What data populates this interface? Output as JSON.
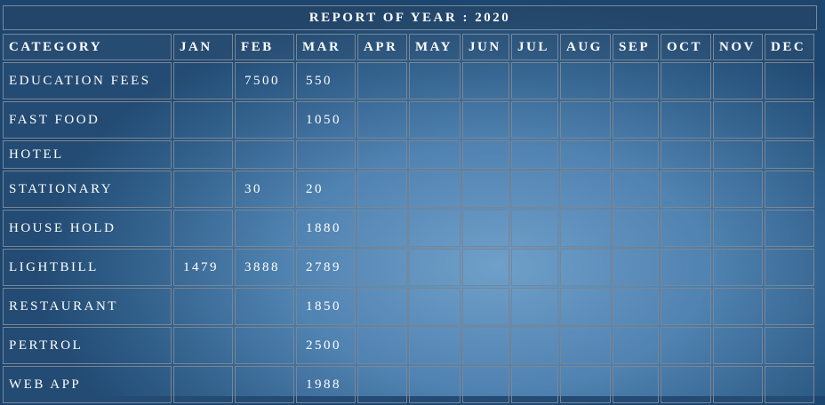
{
  "report": {
    "title": "REPORT OF YEAR : 2020",
    "columns": [
      "CATEGORY",
      "JAN",
      "FEB",
      "MAR",
      "APR",
      "MAY",
      "JUN",
      "JUL",
      "AUG",
      "SEP",
      "OCT",
      "NOV",
      "DEC"
    ],
    "rows": [
      {
        "category": "EDUCATION FEES",
        "values": [
          "",
          "7500",
          "550",
          "",
          "",
          "",
          "",
          "",
          "",
          "",
          "",
          ""
        ]
      },
      {
        "category": "FAST FOOD",
        "values": [
          "",
          "",
          "1050",
          "",
          "",
          "",
          "",
          "",
          "",
          "",
          "",
          ""
        ]
      },
      {
        "category": "HOTEL",
        "values": [
          "",
          "",
          "",
          "",
          "",
          "",
          "",
          "",
          "",
          "",
          "",
          ""
        ]
      },
      {
        "category": "STATIONARY",
        "values": [
          "",
          "30",
          "20",
          "",
          "",
          "",
          "",
          "",
          "",
          "",
          "",
          ""
        ]
      },
      {
        "category": "HOUSE HOLD",
        "values": [
          "",
          "",
          "1880",
          "",
          "",
          "",
          "",
          "",
          "",
          "",
          "",
          ""
        ]
      },
      {
        "category": "LIGHTBILL",
        "values": [
          "1479",
          "3888",
          "2789",
          "",
          "",
          "",
          "",
          "",
          "",
          "",
          "",
          ""
        ]
      },
      {
        "category": "RESTAURANT",
        "values": [
          "",
          "",
          "1850",
          "",
          "",
          "",
          "",
          "",
          "",
          "",
          "",
          ""
        ]
      },
      {
        "category": "PERTROL",
        "values": [
          "",
          "",
          "2500",
          "",
          "",
          "",
          "",
          "",
          "",
          "",
          "",
          ""
        ]
      },
      {
        "category": "WEB APP",
        "values": [
          "",
          "",
          "1988",
          "",
          "",
          "",
          "",
          "",
          "",
          "",
          "",
          ""
        ]
      }
    ]
  }
}
